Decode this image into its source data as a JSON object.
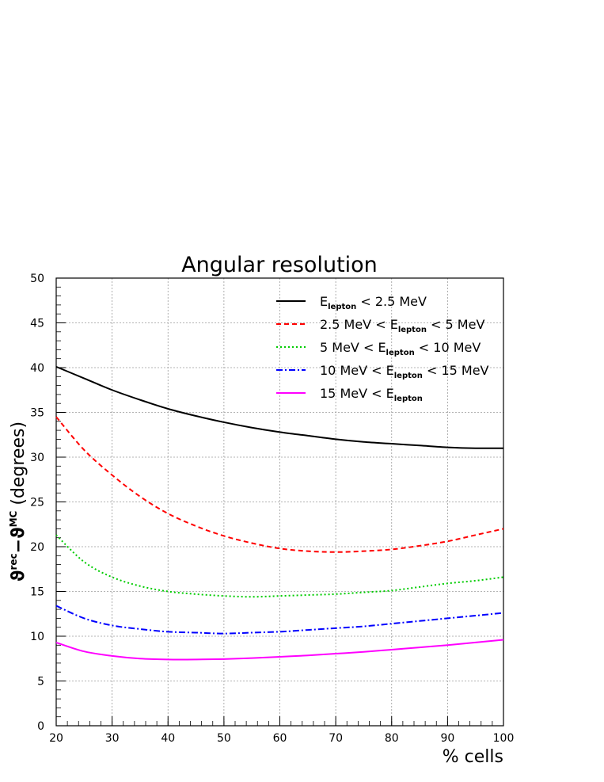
{
  "chart_data": {
    "type": "line",
    "title": "Angular resolution",
    "xlabel": "% cells",
    "ylabel_main": "ϑ",
    "ylabel_sup1": "rec",
    "ylabel_mid": "−ϑ",
    "ylabel_sup2": "MC",
    "ylabel_tail": " (degrees)",
    "xlim": [
      20,
      100
    ],
    "ylim": [
      0,
      50
    ],
    "xticks": [
      20,
      30,
      40,
      50,
      60,
      70,
      80,
      90,
      100
    ],
    "yticks": [
      0,
      5,
      10,
      15,
      20,
      25,
      30,
      35,
      40,
      45,
      50
    ],
    "grid": true,
    "legend_position": "top-right",
    "series": [
      {
        "legend": {
          "pre": "",
          "sub": "lepton",
          "post": " < 2.5 MeV"
        },
        "color": "#000000",
        "style": "solid",
        "x": [
          20,
          25,
          30,
          35,
          40,
          45,
          50,
          55,
          60,
          65,
          70,
          75,
          80,
          85,
          90,
          95,
          100
        ],
        "y": [
          40.1,
          38.8,
          37.5,
          36.4,
          35.4,
          34.6,
          33.9,
          33.3,
          32.8,
          32.4,
          32.0,
          31.7,
          31.5,
          31.3,
          31.1,
          31.0,
          31.0
        ]
      },
      {
        "legend": {
          "pre": "2.5 MeV < ",
          "sub": "lepton",
          "post": " < 5 MeV"
        },
        "color": "#ff0000",
        "style": "dashed",
        "x": [
          20,
          25,
          30,
          35,
          40,
          45,
          50,
          55,
          60,
          65,
          70,
          75,
          80,
          85,
          90,
          95,
          100
        ],
        "y": [
          34.5,
          30.8,
          28.0,
          25.6,
          23.7,
          22.3,
          21.2,
          20.4,
          19.8,
          19.5,
          19.4,
          19.5,
          19.7,
          20.1,
          20.6,
          21.3,
          22.0
        ]
      },
      {
        "legend": {
          "pre": "5 MeV < ",
          "sub": "lepton",
          "post": " < 10 MeV"
        },
        "color": "#00cc00",
        "style": "dotted",
        "x": [
          20,
          25,
          30,
          35,
          40,
          45,
          50,
          55,
          60,
          65,
          70,
          75,
          80,
          85,
          90,
          95,
          100
        ],
        "y": [
          21.3,
          18.3,
          16.6,
          15.6,
          15.0,
          14.7,
          14.5,
          14.4,
          14.5,
          14.6,
          14.7,
          14.9,
          15.1,
          15.5,
          15.9,
          16.2,
          16.6
        ]
      },
      {
        "legend": {
          "pre": "10 MeV < ",
          "sub": "lepton",
          "post": " < 15 MeV"
        },
        "color": "#0000ff",
        "style": "dashdot",
        "x": [
          20,
          25,
          30,
          35,
          40,
          45,
          50,
          55,
          60,
          65,
          70,
          75,
          80,
          85,
          90,
          95,
          100
        ],
        "y": [
          13.4,
          12.0,
          11.2,
          10.8,
          10.5,
          10.4,
          10.3,
          10.4,
          10.5,
          10.7,
          10.9,
          11.1,
          11.4,
          11.7,
          12.0,
          12.3,
          12.6
        ]
      },
      {
        "legend": {
          "pre": "15 MeV < ",
          "sub": "lepton",
          "post": ""
        },
        "color": "#ff00ff",
        "style": "solid",
        "x": [
          20,
          25,
          30,
          35,
          40,
          45,
          50,
          55,
          60,
          65,
          70,
          75,
          80,
          85,
          90,
          95,
          100
        ],
        "y": [
          9.3,
          8.3,
          7.8,
          7.5,
          7.4,
          7.4,
          7.45,
          7.55,
          7.7,
          7.85,
          8.05,
          8.25,
          8.5,
          8.75,
          9.0,
          9.3,
          9.6
        ]
      }
    ]
  }
}
